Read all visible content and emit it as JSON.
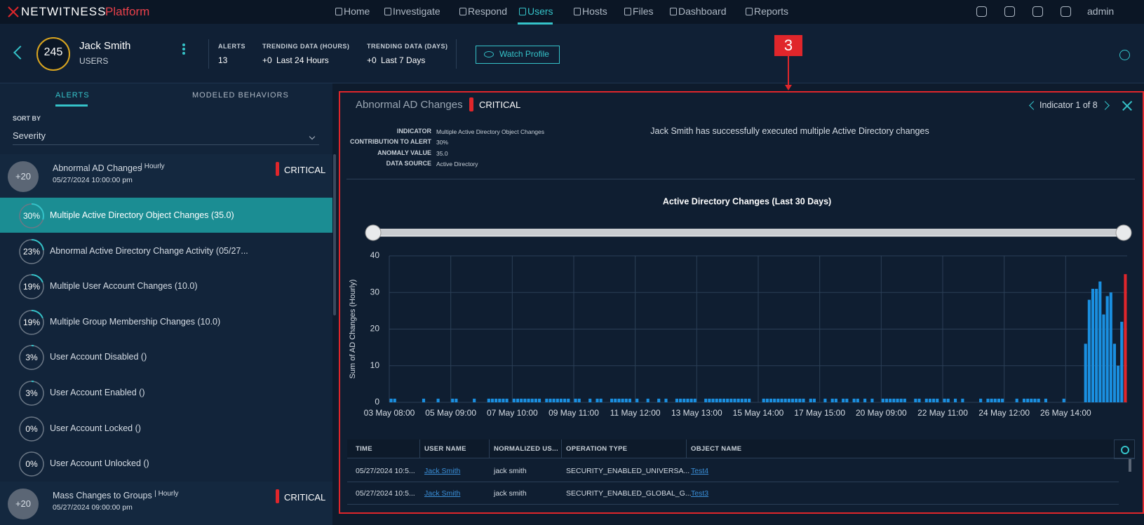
{
  "nav": {
    "brand": "NETWITNESS",
    "brand_suffix": "Platform",
    "items": [
      "Home",
      "Investigate",
      "Respond",
      "Users",
      "Hosts",
      "Files",
      "Dashboard",
      "Reports"
    ],
    "active": "Users",
    "user": "admin"
  },
  "profile": {
    "score": "245",
    "name": "Jack Smith",
    "entity_type": "USERS",
    "stats": [
      {
        "label": "ALERTS",
        "value": "13"
      },
      {
        "label": "TRENDING DATA (HOURS)",
        "delta": "+0",
        "value": "Last 24 Hours"
      },
      {
        "label": "TRENDING DATA (DAYS)",
        "delta": "+0",
        "value": "Last 7 Days"
      }
    ],
    "watch_button": "Watch Profile"
  },
  "left_panel": {
    "tabs": [
      "ALERTS",
      "MODELED BEHAVIORS"
    ],
    "sort_label": "SORT BY",
    "sort_value": "Severity",
    "alerts": [
      {
        "badge": "+20",
        "name": "Abnormal AD Changes",
        "frequency": "| Hourly",
        "date": "05/27/2024 10:00:00 pm",
        "severity": "CRITICAL",
        "indicators": [
          {
            "contribution": 30,
            "contribution_label": "30%",
            "name": "Multiple Active Directory Object Changes (35.0)"
          },
          {
            "contribution": 23,
            "contribution_label": "23%",
            "name": "Abnormal Active Directory Change Activity (05/27..."
          },
          {
            "contribution": 19,
            "contribution_label": "19%",
            "name": "Multiple User Account Changes (10.0)"
          },
          {
            "contribution": 19,
            "contribution_label": "19%",
            "name": "Multiple Group Membership Changes (10.0)"
          },
          {
            "contribution": 3,
            "contribution_label": "3%",
            "name": "User Account Disabled ()"
          },
          {
            "contribution": 3,
            "contribution_label": "3%",
            "name": "User Account Enabled ()"
          },
          {
            "contribution": 0,
            "contribution_label": "0%",
            "name": "User Account Locked ()"
          },
          {
            "contribution": 0,
            "contribution_label": "0%",
            "name": "User Account Unlocked ()"
          }
        ]
      },
      {
        "badge": "+20",
        "name": "Mass Changes to Groups",
        "frequency": "| Hourly",
        "date": "05/27/2024 09:00:00 pm",
        "severity": "CRITICAL",
        "indicators": []
      }
    ]
  },
  "callout": "3",
  "detail": {
    "title": "Abnormal AD Changes",
    "severity": "CRITICAL",
    "pager": "Indicator 1 of 8",
    "fields": [
      {
        "label": "INDICATOR",
        "value": "Multiple Active Directory Object Changes"
      },
      {
        "label": "CONTRIBUTION TO ALERT",
        "value": "30%"
      },
      {
        "label": "ANOMALY VALUE",
        "value": "35.0"
      },
      {
        "label": "DATA SOURCE",
        "value": "Active Directory"
      }
    ],
    "description": "Jack Smith has successfully executed multiple Active Directory changes",
    "table": {
      "columns": [
        "TIME",
        "USER NAME",
        "NORMALIZED US...",
        "OPERATION TYPE",
        "OBJECT NAME"
      ],
      "rows": [
        [
          "05/27/2024 10:5...",
          "Jack Smith",
          "jack smith",
          "SECURITY_ENABLED_UNIVERSA...",
          "Test4"
        ],
        [
          "05/27/2024 10:5...",
          "Jack Smith",
          "jack smith",
          "SECURITY_ENABLED_GLOBAL_G...",
          "Test3"
        ]
      ]
    }
  },
  "chart_data": {
    "type": "bar",
    "title": "Active Directory Changes (Last 30 Days)",
    "y_label": "Sum of AD Changes (Hourly)",
    "color": "#1a8fe0",
    "highlight": {
      "index": 203,
      "color": "#e0262b"
    },
    "grid": true,
    "ylim": [
      0,
      40
    ],
    "yticks": [
      0,
      10,
      20,
      30,
      40
    ],
    "categories": [
      "03 May 08:00",
      null,
      null,
      null,
      null,
      null,
      null,
      null,
      null,
      null,
      null,
      null,
      null,
      null,
      null,
      null,
      null,
      "05 May 09:00",
      null,
      null,
      null,
      null,
      null,
      null,
      null,
      null,
      null,
      null,
      null,
      null,
      null,
      null,
      null,
      null,
      "07 May 10:00",
      null,
      null,
      null,
      null,
      null,
      null,
      null,
      null,
      null,
      null,
      null,
      null,
      null,
      null,
      null,
      null,
      "09 May 11:00",
      null,
      null,
      null,
      null,
      null,
      null,
      null,
      null,
      null,
      null,
      null,
      null,
      null,
      null,
      null,
      null,
      "11 May 12:00",
      null,
      null,
      null,
      null,
      null,
      null,
      null,
      null,
      null,
      null,
      null,
      null,
      null,
      null,
      null,
      null,
      "13 May 13:00",
      null,
      null,
      null,
      null,
      null,
      null,
      null,
      null,
      null,
      null,
      null,
      null,
      null,
      null,
      null,
      null,
      "15 May 14:00",
      null,
      null,
      null,
      null,
      null,
      null,
      null,
      null,
      null,
      null,
      null,
      null,
      null,
      null,
      null,
      null,
      "17 May 15:00",
      null,
      null,
      null,
      null,
      null,
      null,
      null,
      null,
      null,
      null,
      null,
      null,
      null,
      null,
      null,
      null,
      "20 May 09:00",
      null,
      null,
      null,
      null,
      null,
      null,
      null,
      null,
      null,
      null,
      null,
      null,
      null,
      null,
      null,
      null,
      "22 May 11:00",
      null,
      null,
      null,
      null,
      null,
      null,
      null,
      null,
      null,
      null,
      null,
      null,
      null,
      null,
      null,
      null,
      "24 May 12:00",
      null,
      null,
      null,
      null,
      null,
      null,
      null,
      null,
      null,
      null,
      null,
      null,
      null,
      null,
      null,
      null,
      "26 May 14:00",
      null,
      null,
      null,
      null,
      null,
      null,
      null,
      null,
      null,
      null,
      null,
      null,
      null,
      null,
      null,
      null
    ],
    "values": [
      1,
      1,
      0,
      0,
      0,
      0,
      0,
      0,
      0,
      1,
      0,
      0,
      0,
      1,
      0,
      0,
      0,
      1,
      1,
      0,
      0,
      0,
      0,
      1,
      0,
      0,
      0,
      1,
      1,
      1,
      1,
      1,
      1,
      0,
      1,
      1,
      1,
      1,
      1,
      1,
      1,
      1,
      0,
      1,
      1,
      1,
      1,
      1,
      1,
      1,
      0,
      1,
      1,
      0,
      0,
      1,
      0,
      1,
      1,
      0,
      0,
      1,
      1,
      1,
      1,
      1,
      1,
      0,
      1,
      0,
      0,
      1,
      0,
      0,
      1,
      0,
      1,
      0,
      0,
      1,
      1,
      1,
      1,
      1,
      1,
      0,
      0,
      1,
      1,
      1,
      1,
      1,
      1,
      1,
      1,
      1,
      1,
      1,
      1,
      1,
      0,
      0,
      0,
      1,
      1,
      1,
      1,
      1,
      1,
      1,
      1,
      1,
      1,
      1,
      1,
      0,
      1,
      1,
      0,
      0,
      1,
      0,
      1,
      1,
      0,
      1,
      1,
      0,
      1,
      1,
      0,
      1,
      0,
      1,
      0,
      0,
      1,
      1,
      1,
      1,
      1,
      1,
      1,
      0,
      0,
      1,
      1,
      0,
      1,
      1,
      1,
      1,
      0,
      1,
      1,
      0,
      1,
      0,
      1,
      0,
      0,
      0,
      0,
      1,
      0,
      1,
      1,
      1,
      1,
      1,
      0,
      0,
      0,
      1,
      0,
      1,
      1,
      1,
      1,
      1,
      0,
      1,
      0,
      0,
      0,
      0,
      1,
      0,
      0,
      0,
      0,
      0,
      16,
      28,
      31,
      31,
      33,
      24,
      29,
      30,
      16,
      10,
      22,
      35
    ]
  }
}
